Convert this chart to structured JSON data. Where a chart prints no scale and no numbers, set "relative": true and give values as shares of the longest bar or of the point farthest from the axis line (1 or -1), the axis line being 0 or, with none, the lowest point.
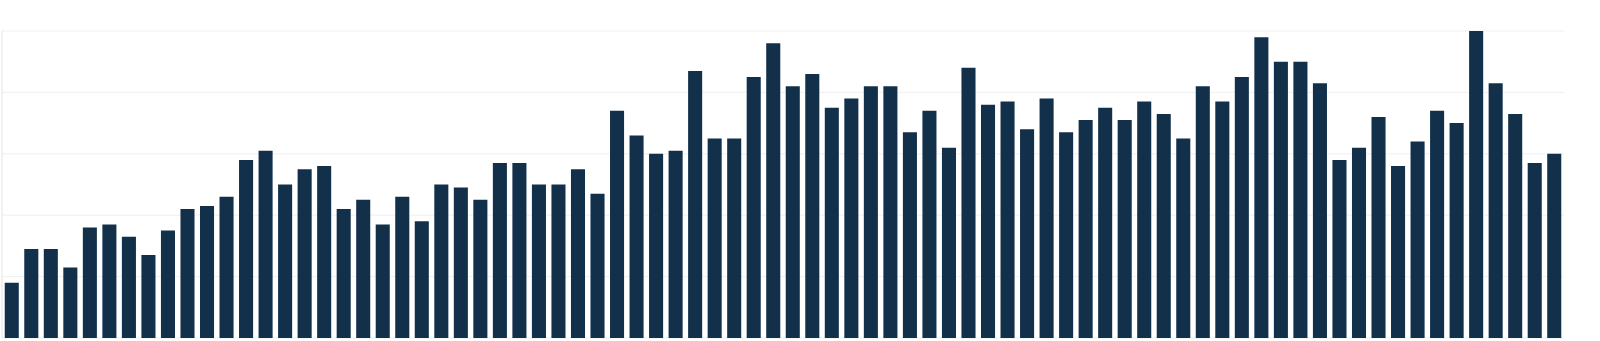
{
  "chart_data": {
    "type": "bar",
    "relative": true,
    "grid": "y",
    "color": "#13304b",
    "categories": [
      null,
      null,
      null,
      null,
      null,
      null,
      null,
      null,
      null,
      null,
      null,
      null,
      null,
      null,
      null,
      null,
      null,
      null,
      null,
      null,
      null,
      null,
      null,
      null,
      null,
      null,
      null,
      null,
      null,
      null,
      null,
      null,
      null,
      null,
      null,
      null,
      null,
      null,
      null,
      null,
      null,
      null,
      null,
      null,
      null,
      null,
      null,
      null,
      null,
      null,
      null,
      null,
      null,
      null,
      null,
      null,
      null,
      null,
      null,
      null,
      null,
      null,
      null,
      null,
      null,
      null,
      null,
      null,
      null,
      null,
      null,
      null,
      null,
      null,
      null,
      null,
      null,
      null,
      null,
      null
    ],
    "values": [
      0.18,
      0.29,
      0.29,
      0.23,
      0.36,
      0.37,
      0.33,
      0.27,
      0.35,
      0.42,
      0.43,
      0.46,
      0.58,
      0.61,
      0.5,
      0.55,
      0.56,
      0.42,
      0.45,
      0.37,
      0.46,
      0.38,
      0.5,
      0.49,
      0.45,
      0.57,
      0.57,
      0.5,
      0.5,
      0.55,
      0.47,
      0.74,
      0.66,
      0.6,
      0.61,
      0.87,
      0.65,
      0.65,
      0.85,
      0.96,
      0.82,
      0.86,
      0.75,
      0.78,
      0.82,
      0.82,
      0.67,
      0.74,
      0.62,
      0.88,
      0.76,
      0.77,
      0.68,
      0.78,
      0.67,
      0.71,
      0.75,
      0.71,
      0.77,
      0.73,
      0.65,
      0.82,
      0.77,
      0.85,
      0.98,
      0.9,
      0.9,
      0.83,
      0.58,
      0.62,
      0.72,
      0.56,
      0.64,
      0.74,
      0.7,
      1,
      0.83,
      0.73,
      0.57,
      0.6
    ]
  }
}
